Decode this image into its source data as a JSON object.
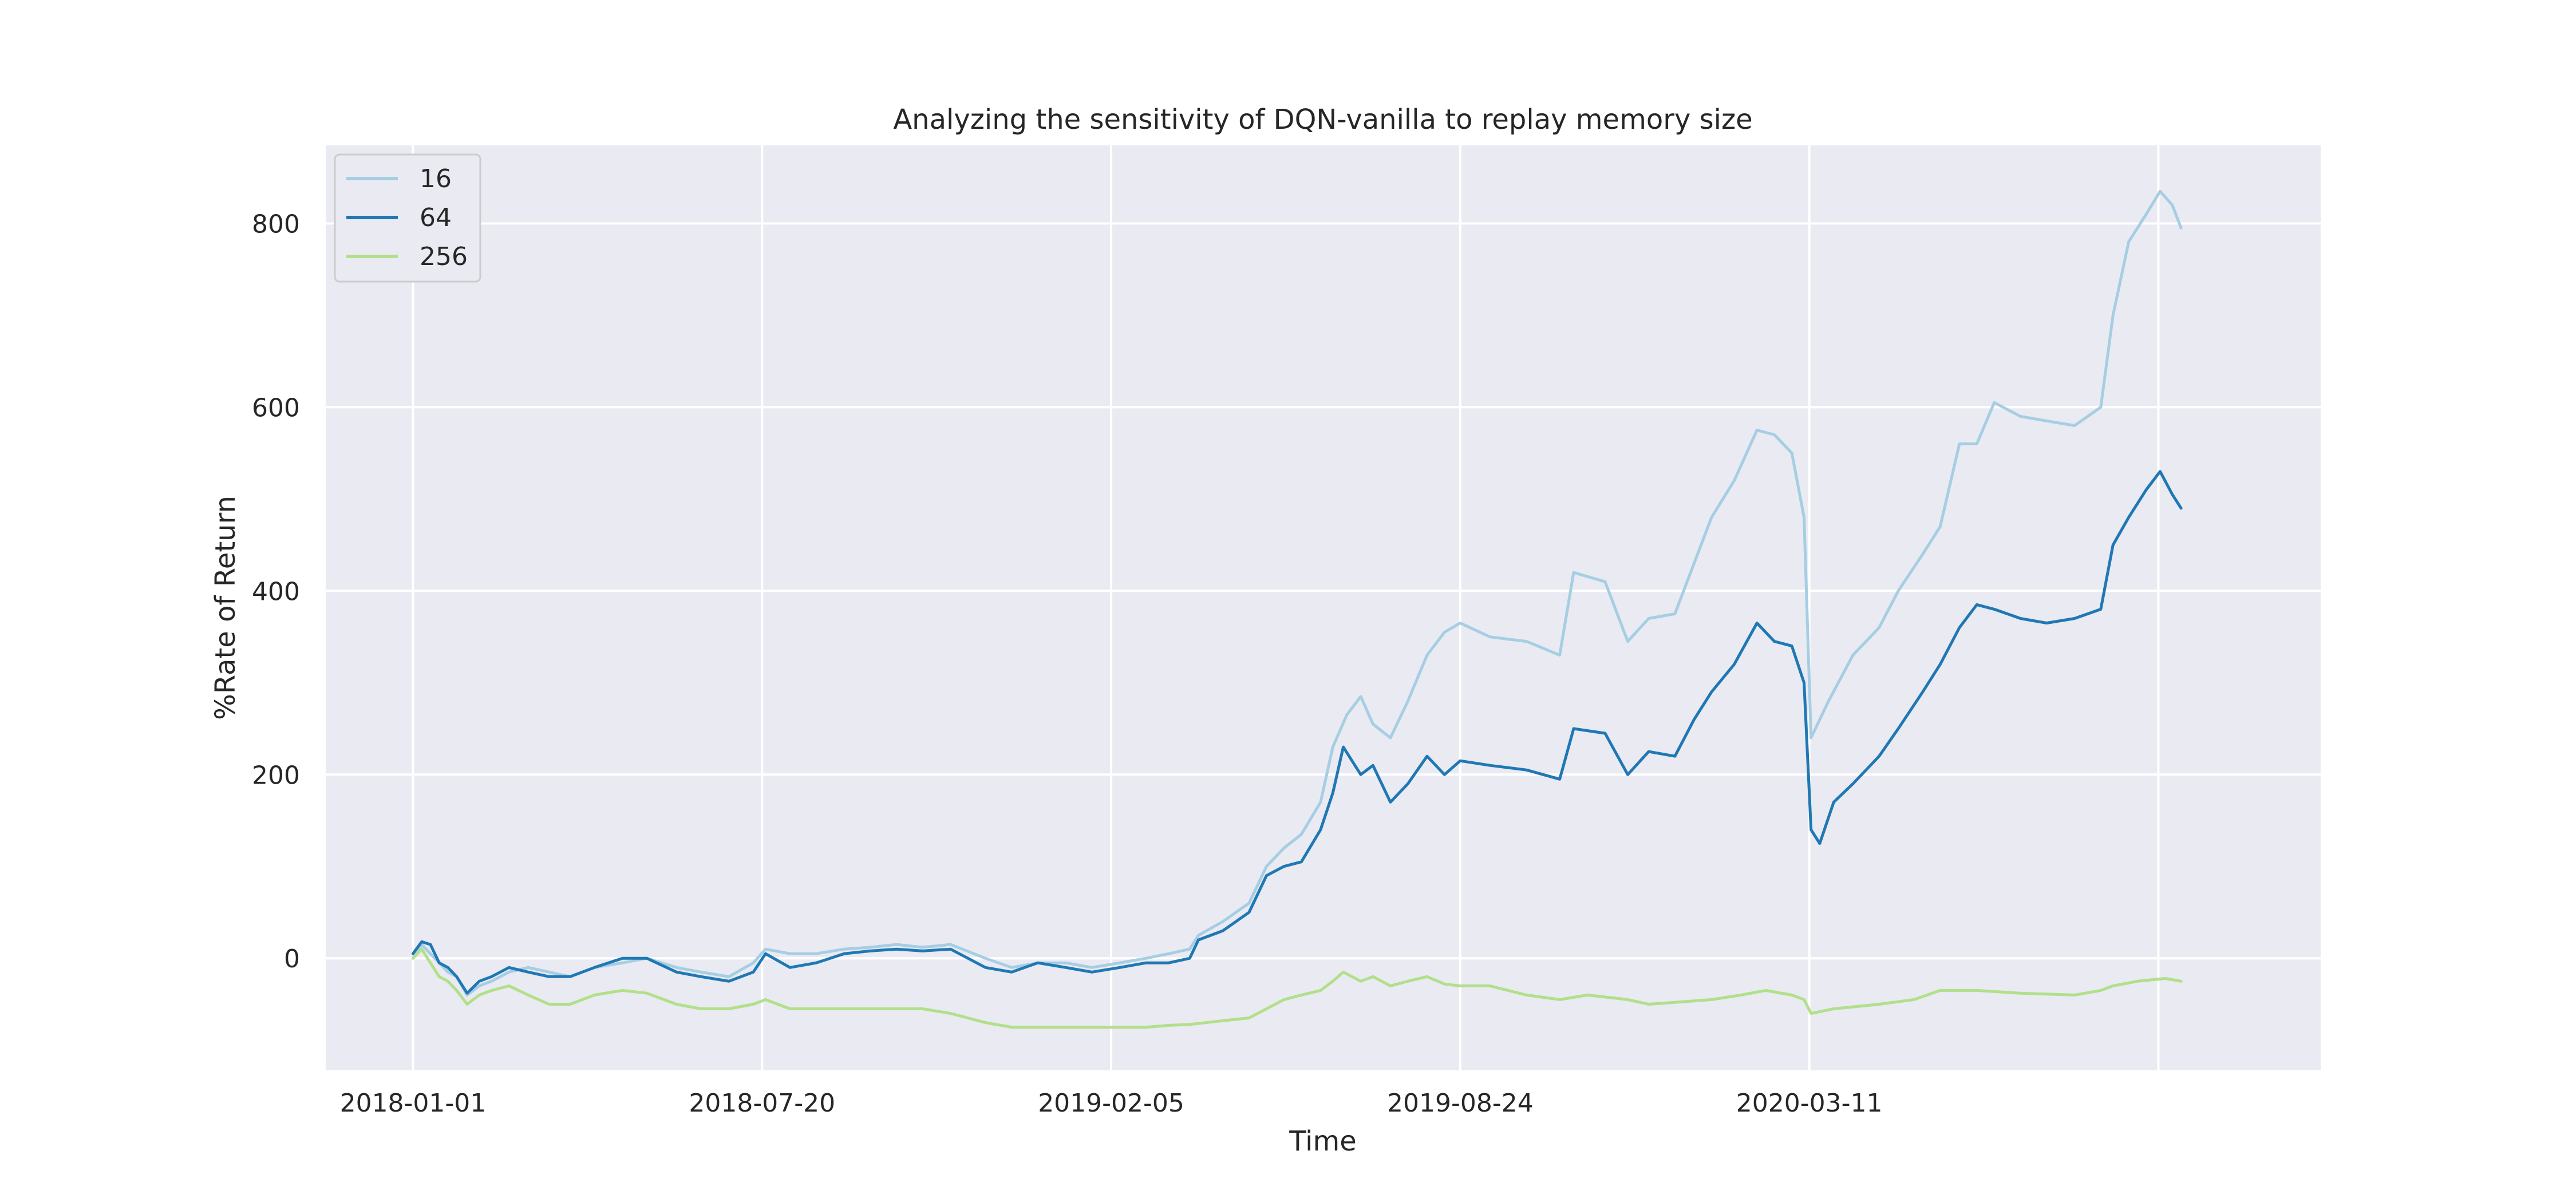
{
  "chart_data": {
    "type": "line",
    "title": "Analyzing the sensitivity of DQN-vanilla to replay memory size",
    "xlabel": "Time",
    "ylabel": "%Rate of Return",
    "x_type": "date",
    "x_ticks": [
      "2018-01-01",
      "2018-07-20",
      "2019-02-05",
      "2019-08-24",
      "2020-03-11"
    ],
    "xlim": [
      "2017-11-12",
      "2020-12-29"
    ],
    "ylim": [
      -122,
      885
    ],
    "y_ticks": [
      0,
      200,
      400,
      600,
      800
    ],
    "grid": true,
    "legend": "upper-left",
    "colors": {
      "plot_bg": "#eaeaf2",
      "grid": "#ffffff",
      "legend_bg": "#eaeaf2",
      "legend_border": "#cccccc"
    },
    "series": [
      {
        "name": "16",
        "color": "#a6cee3",
        "points": [
          [
            "2018-01-01",
            0
          ],
          [
            "2018-01-06",
            15
          ],
          [
            "2018-01-11",
            5
          ],
          [
            "2018-01-16",
            -5
          ],
          [
            "2018-01-21",
            -15
          ],
          [
            "2018-01-26",
            -20
          ],
          [
            "2018-02-01",
            -40
          ],
          [
            "2018-02-08",
            -30
          ],
          [
            "2018-02-15",
            -25
          ],
          [
            "2018-02-25",
            -15
          ],
          [
            "2018-03-08",
            -10
          ],
          [
            "2018-03-20",
            -15
          ],
          [
            "2018-04-01",
            -20
          ],
          [
            "2018-04-15",
            -10
          ],
          [
            "2018-05-01",
            -5
          ],
          [
            "2018-05-15",
            0
          ],
          [
            "2018-06-01",
            -10
          ],
          [
            "2018-06-15",
            -15
          ],
          [
            "2018-07-01",
            -20
          ],
          [
            "2018-07-15",
            -5
          ],
          [
            "2018-07-22",
            10
          ],
          [
            "2018-08-05",
            5
          ],
          [
            "2018-08-20",
            5
          ],
          [
            "2018-09-05",
            10
          ],
          [
            "2018-09-20",
            12
          ],
          [
            "2018-10-05",
            15
          ],
          [
            "2018-10-20",
            12
          ],
          [
            "2018-11-05",
            15
          ],
          [
            "2018-11-25",
            0
          ],
          [
            "2018-12-10",
            -10
          ],
          [
            "2018-12-25",
            -5
          ],
          [
            "2019-01-10",
            -5
          ],
          [
            "2019-01-25",
            -10
          ],
          [
            "2019-02-10",
            -5
          ],
          [
            "2019-02-25",
            0
          ],
          [
            "2019-03-10",
            5
          ],
          [
            "2019-03-22",
            10
          ],
          [
            "2019-03-27",
            25
          ],
          [
            "2019-04-10",
            40
          ],
          [
            "2019-04-25",
            60
          ],
          [
            "2019-05-05",
            100
          ],
          [
            "2019-05-15",
            120
          ],
          [
            "2019-05-25",
            135
          ],
          [
            "2019-06-05",
            170
          ],
          [
            "2019-06-12",
            230
          ],
          [
            "2019-06-20",
            265
          ],
          [
            "2019-06-28",
            285
          ],
          [
            "2019-07-05",
            255
          ],
          [
            "2019-07-15",
            240
          ],
          [
            "2019-07-25",
            280
          ],
          [
            "2019-08-05",
            330
          ],
          [
            "2019-08-15",
            355
          ],
          [
            "2019-08-24",
            365
          ],
          [
            "2019-09-10",
            350
          ],
          [
            "2019-10-01",
            345
          ],
          [
            "2019-10-20",
            330
          ],
          [
            "2019-10-28",
            420
          ],
          [
            "2019-11-15",
            410
          ],
          [
            "2019-11-28",
            345
          ],
          [
            "2019-12-10",
            370
          ],
          [
            "2019-12-25",
            375
          ],
          [
            "2020-01-05",
            430
          ],
          [
            "2020-01-15",
            480
          ],
          [
            "2020-01-28",
            520
          ],
          [
            "2020-02-10",
            575
          ],
          [
            "2020-02-20",
            570
          ],
          [
            "2020-03-01",
            550
          ],
          [
            "2020-03-08",
            480
          ],
          [
            "2020-03-12",
            240
          ],
          [
            "2020-03-22",
            280
          ],
          [
            "2020-04-05",
            330
          ],
          [
            "2020-04-20",
            360
          ],
          [
            "2020-05-01",
            400
          ],
          [
            "2020-05-15",
            440
          ],
          [
            "2020-05-25",
            470
          ],
          [
            "2020-06-05",
            560
          ],
          [
            "2020-06-15",
            560
          ],
          [
            "2020-06-25",
            605
          ],
          [
            "2020-07-10",
            590
          ],
          [
            "2020-07-25",
            585
          ],
          [
            "2020-08-10",
            580
          ],
          [
            "2020-08-25",
            600
          ],
          [
            "2020-09-01",
            700
          ],
          [
            "2020-09-10",
            780
          ],
          [
            "2020-09-20",
            810
          ],
          [
            "2020-09-28",
            835
          ],
          [
            "2020-10-05",
            820
          ],
          [
            "2020-10-10",
            795
          ]
        ]
      },
      {
        "name": "64",
        "color": "#1f78b4",
        "points": [
          [
            "2018-01-01",
            5
          ],
          [
            "2018-01-06",
            18
          ],
          [
            "2018-01-11",
            15
          ],
          [
            "2018-01-16",
            -5
          ],
          [
            "2018-01-21",
            -10
          ],
          [
            "2018-01-26",
            -20
          ],
          [
            "2018-02-01",
            -38
          ],
          [
            "2018-02-08",
            -25
          ],
          [
            "2018-02-15",
            -20
          ],
          [
            "2018-02-25",
            -10
          ],
          [
            "2018-03-08",
            -15
          ],
          [
            "2018-03-20",
            -20
          ],
          [
            "2018-04-01",
            -20
          ],
          [
            "2018-04-15",
            -10
          ],
          [
            "2018-05-01",
            0
          ],
          [
            "2018-05-15",
            0
          ],
          [
            "2018-06-01",
            -15
          ],
          [
            "2018-06-15",
            -20
          ],
          [
            "2018-07-01",
            -25
          ],
          [
            "2018-07-15",
            -15
          ],
          [
            "2018-07-22",
            5
          ],
          [
            "2018-08-05",
            -10
          ],
          [
            "2018-08-20",
            -5
          ],
          [
            "2018-09-05",
            5
          ],
          [
            "2018-09-20",
            8
          ],
          [
            "2018-10-05",
            10
          ],
          [
            "2018-10-20",
            8
          ],
          [
            "2018-11-05",
            10
          ],
          [
            "2018-11-25",
            -10
          ],
          [
            "2018-12-10",
            -15
          ],
          [
            "2018-12-25",
            -5
          ],
          [
            "2019-01-10",
            -10
          ],
          [
            "2019-01-25",
            -15
          ],
          [
            "2019-02-10",
            -10
          ],
          [
            "2019-02-25",
            -5
          ],
          [
            "2019-03-10",
            -5
          ],
          [
            "2019-03-22",
            0
          ],
          [
            "2019-03-27",
            20
          ],
          [
            "2019-04-10",
            30
          ],
          [
            "2019-04-25",
            50
          ],
          [
            "2019-05-05",
            90
          ],
          [
            "2019-05-15",
            100
          ],
          [
            "2019-05-25",
            105
          ],
          [
            "2019-06-05",
            140
          ],
          [
            "2019-06-12",
            180
          ],
          [
            "2019-06-18",
            230
          ],
          [
            "2019-06-28",
            200
          ],
          [
            "2019-07-05",
            210
          ],
          [
            "2019-07-15",
            170
          ],
          [
            "2019-07-25",
            190
          ],
          [
            "2019-08-05",
            220
          ],
          [
            "2019-08-15",
            200
          ],
          [
            "2019-08-24",
            215
          ],
          [
            "2019-09-10",
            210
          ],
          [
            "2019-10-01",
            205
          ],
          [
            "2019-10-20",
            195
          ],
          [
            "2019-10-28",
            250
          ],
          [
            "2019-11-15",
            245
          ],
          [
            "2019-11-28",
            200
          ],
          [
            "2019-12-10",
            225
          ],
          [
            "2019-12-25",
            220
          ],
          [
            "2020-01-05",
            260
          ],
          [
            "2020-01-15",
            290
          ],
          [
            "2020-01-28",
            320
          ],
          [
            "2020-02-10",
            365
          ],
          [
            "2020-02-20",
            345
          ],
          [
            "2020-03-01",
            340
          ],
          [
            "2020-03-08",
            300
          ],
          [
            "2020-03-12",
            140
          ],
          [
            "2020-03-17",
            125
          ],
          [
            "2020-03-25",
            170
          ],
          [
            "2020-04-05",
            190
          ],
          [
            "2020-04-20",
            220
          ],
          [
            "2020-05-01",
            250
          ],
          [
            "2020-05-15",
            290
          ],
          [
            "2020-05-25",
            320
          ],
          [
            "2020-06-05",
            360
          ],
          [
            "2020-06-15",
            385
          ],
          [
            "2020-06-25",
            380
          ],
          [
            "2020-07-10",
            370
          ],
          [
            "2020-07-25",
            365
          ],
          [
            "2020-08-10",
            370
          ],
          [
            "2020-08-25",
            380
          ],
          [
            "2020-09-01",
            450
          ],
          [
            "2020-09-10",
            480
          ],
          [
            "2020-09-20",
            510
          ],
          [
            "2020-09-28",
            530
          ],
          [
            "2020-10-05",
            505
          ],
          [
            "2020-10-10",
            490
          ]
        ]
      },
      {
        "name": "256",
        "color": "#b2df8a",
        "points": [
          [
            "2018-01-01",
            0
          ],
          [
            "2018-01-06",
            10
          ],
          [
            "2018-01-11",
            -5
          ],
          [
            "2018-01-16",
            -20
          ],
          [
            "2018-01-21",
            -25
          ],
          [
            "2018-01-26",
            -35
          ],
          [
            "2018-02-01",
            -50
          ],
          [
            "2018-02-08",
            -40
          ],
          [
            "2018-02-15",
            -35
          ],
          [
            "2018-02-25",
            -30
          ],
          [
            "2018-03-08",
            -40
          ],
          [
            "2018-03-20",
            -50
          ],
          [
            "2018-04-01",
            -50
          ],
          [
            "2018-04-15",
            -40
          ],
          [
            "2018-05-01",
            -35
          ],
          [
            "2018-05-15",
            -38
          ],
          [
            "2018-06-01",
            -50
          ],
          [
            "2018-06-15",
            -55
          ],
          [
            "2018-07-01",
            -55
          ],
          [
            "2018-07-15",
            -50
          ],
          [
            "2018-07-22",
            -45
          ],
          [
            "2018-08-05",
            -55
          ],
          [
            "2018-08-20",
            -55
          ],
          [
            "2018-09-05",
            -55
          ],
          [
            "2018-09-20",
            -55
          ],
          [
            "2018-10-05",
            -55
          ],
          [
            "2018-10-20",
            -55
          ],
          [
            "2018-11-05",
            -60
          ],
          [
            "2018-11-25",
            -70
          ],
          [
            "2018-12-10",
            -75
          ],
          [
            "2018-12-25",
            -75
          ],
          [
            "2019-01-10",
            -75
          ],
          [
            "2019-01-25",
            -75
          ],
          [
            "2019-02-10",
            -75
          ],
          [
            "2019-02-25",
            -75
          ],
          [
            "2019-03-10",
            -73
          ],
          [
            "2019-03-22",
            -72
          ],
          [
            "2019-04-10",
            -68
          ],
          [
            "2019-04-25",
            -65
          ],
          [
            "2019-05-05",
            -55
          ],
          [
            "2019-05-15",
            -45
          ],
          [
            "2019-05-25",
            -40
          ],
          [
            "2019-06-05",
            -35
          ],
          [
            "2019-06-12",
            -25
          ],
          [
            "2019-06-18",
            -15
          ],
          [
            "2019-06-28",
            -25
          ],
          [
            "2019-07-05",
            -20
          ],
          [
            "2019-07-15",
            -30
          ],
          [
            "2019-07-25",
            -25
          ],
          [
            "2019-08-05",
            -20
          ],
          [
            "2019-08-15",
            -28
          ],
          [
            "2019-08-24",
            -30
          ],
          [
            "2019-09-10",
            -30
          ],
          [
            "2019-10-01",
            -40
          ],
          [
            "2019-10-20",
            -45
          ],
          [
            "2019-11-05",
            -40
          ],
          [
            "2019-11-28",
            -45
          ],
          [
            "2019-12-10",
            -50
          ],
          [
            "2019-12-25",
            -48
          ],
          [
            "2020-01-15",
            -45
          ],
          [
            "2020-02-01",
            -40
          ],
          [
            "2020-02-15",
            -35
          ],
          [
            "2020-03-01",
            -40
          ],
          [
            "2020-03-08",
            -45
          ],
          [
            "2020-03-12",
            -60
          ],
          [
            "2020-03-25",
            -55
          ],
          [
            "2020-04-20",
            -50
          ],
          [
            "2020-05-10",
            -45
          ],
          [
            "2020-05-25",
            -35
          ],
          [
            "2020-06-15",
            -35
          ],
          [
            "2020-07-10",
            -38
          ],
          [
            "2020-08-10",
            -40
          ],
          [
            "2020-08-25",
            -35
          ],
          [
            "2020-09-01",
            -30
          ],
          [
            "2020-09-15",
            -25
          ],
          [
            "2020-10-01",
            -22
          ],
          [
            "2020-10-10",
            -25
          ]
        ]
      }
    ]
  }
}
